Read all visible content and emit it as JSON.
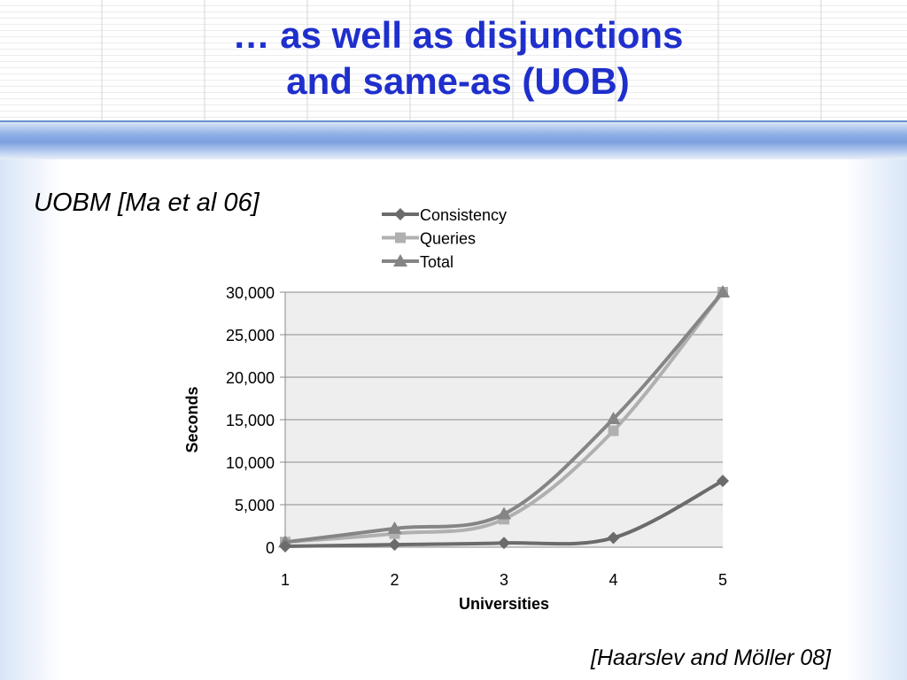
{
  "slide": {
    "title_line1": "… as well as disjunctions",
    "title_line2": "and same-as (UOB)",
    "subtitle": "UOBM [Ma et al 06]",
    "citation": "[Haarslev and Möller 08]"
  },
  "colors": {
    "title": "#1f2fcc",
    "consistency": "#6b6b6b",
    "queries": "#b0b0b0",
    "total": "#858585",
    "plot_background": "#eeeeee"
  },
  "chart_data": {
    "type": "line",
    "x": [
      1,
      2,
      3,
      4,
      5
    ],
    "xlabel": "Universities",
    "ylabel": "Seconds",
    "ylim": [
      0,
      30000
    ],
    "yticks": [
      0,
      5000,
      10000,
      15000,
      20000,
      25000,
      30000
    ],
    "ytick_labels": [
      "0",
      "5,000",
      "10,000",
      "15,000",
      "20,000",
      "25,000",
      "30,000"
    ],
    "grid": true,
    "legend_position": "top",
    "series": [
      {
        "name": "Consistency",
        "marker": "diamond",
        "values": [
          100,
          300,
          500,
          1100,
          7800
        ]
      },
      {
        "name": "Queries",
        "marker": "square",
        "values": [
          600,
          1600,
          3300,
          13700,
          30000
        ]
      },
      {
        "name": "Total",
        "marker": "triangle",
        "values": [
          600,
          2200,
          3900,
          15100,
          30000
        ]
      }
    ]
  }
}
